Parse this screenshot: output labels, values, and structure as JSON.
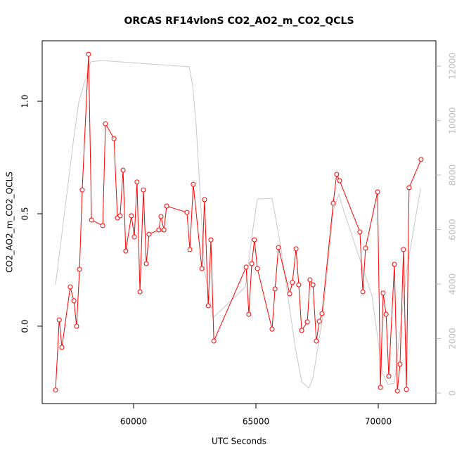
{
  "chart_data": {
    "type": "line",
    "title": "ORCAS RF14vlonS CO2_AO2_m_CO2_QCLS",
    "x_label": "UTC Seconds",
    "y_label": "CO2_AO2_m_CO2_QCLS",
    "xlim": [
      56264,
      72356
    ],
    "ylim": [
      -0.344,
      1.269
    ],
    "y2lim": [
      -387,
      12929
    ],
    "xticks": [
      60000,
      65000,
      70000
    ],
    "yticks": [
      {
        "value": 0,
        "label": "0.0"
      },
      0.5,
      {
        "value": 1,
        "label": "1.0"
      }
    ],
    "y2ticks": [
      0,
      2000,
      4000,
      6000,
      8000,
      10000,
      12000
    ],
    "series": [
      {
        "color": "#ff0000",
        "markers": true,
        "x": [
          56810,
          56960,
          57070,
          57410,
          57560,
          57670,
          57790,
          57900,
          58160,
          58280,
          58740,
          58850,
          59200,
          59340,
          59450,
          59570,
          59680,
          59910,
          60030,
          60140,
          60260,
          60400,
          60520,
          60630,
          61030,
          61120,
          61240,
          61350,
          62180,
          62300,
          62440,
          62790,
          62900,
          63050,
          63160,
          63280,
          64600,
          64710,
          64830,
          64940,
          65060,
          65660,
          65780,
          65920,
          66380,
          66490,
          66640,
          66750,
          66870,
          67100,
          67210,
          67330,
          67470,
          67590,
          67700,
          68160,
          68300,
          68420,
          69250,
          69370,
          69480,
          69970,
          70090,
          70200,
          70320,
          70430,
          70660,
          70780,
          70890,
          71030,
          71150,
          71260,
          71750
        ],
        "values": [
          -0.284,
          0.028,
          -0.094,
          0.175,
          0.113,
          0.0,
          0.253,
          0.606,
          1.209,
          0.472,
          0.447,
          0.9,
          0.834,
          0.481,
          0.491,
          0.694,
          0.334,
          0.491,
          0.397,
          0.641,
          0.153,
          0.606,
          0.278,
          0.409,
          0.428,
          0.488,
          0.428,
          0.534,
          0.506,
          0.341,
          0.631,
          0.256,
          0.563,
          0.091,
          0.384,
          -0.066,
          0.263,
          0.053,
          0.278,
          0.384,
          0.256,
          -0.013,
          0.166,
          0.35,
          0.144,
          0.194,
          0.344,
          0.184,
          -0.019,
          0.019,
          0.206,
          0.184,
          -0.066,
          0.022,
          0.056,
          0.547,
          0.675,
          0.647,
          0.419,
          0.153,
          0.347,
          0.597,
          -0.272,
          0.147,
          0.053,
          -0.222,
          0.275,
          -0.288,
          -0.169,
          0.341,
          -0.281,
          0.616,
          0.741
        ]
      },
      {
        "color": "#c8c8c8",
        "axis": "y2",
        "markers": false,
        "x": [
          56810,
          57560,
          57760,
          58080,
          58250,
          58680,
          62270,
          62410,
          62560,
          62900,
          63250,
          64570,
          64860,
          65060,
          65660,
          66010,
          66590,
          66870,
          67160,
          67330,
          67730,
          68160,
          68390,
          68590,
          69740,
          70170,
          70400,
          70660,
          71180,
          71730
        ],
        "values": [
          3974,
          9394,
          10684,
          11665,
          12155,
          12206,
          11974,
          11329,
          9781,
          4490,
          2761,
          3897,
          5910,
          7123,
          7148,
          5394,
          1781,
          413,
          181,
          542,
          2813,
          6684,
          7303,
          6684,
          3587,
          748,
          310,
          361,
          4619,
          7510
        ]
      }
    ]
  }
}
